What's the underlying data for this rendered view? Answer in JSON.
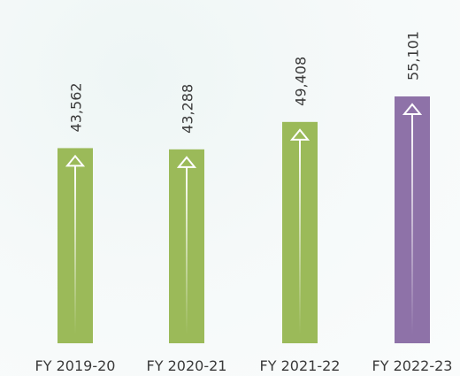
{
  "chart_data": {
    "type": "bar",
    "categories": [
      "FY 2019-20",
      "FY 2020-21",
      "FY 2021-22",
      "FY 2022-23"
    ],
    "values": [
      43562,
      43288,
      49408,
      55101
    ],
    "value_labels": [
      "43,562",
      "43,288",
      "49,408",
      "55,101"
    ],
    "colors": [
      "#9bba59",
      "#9bba59",
      "#9bba59",
      "#8e72a8"
    ]
  }
}
